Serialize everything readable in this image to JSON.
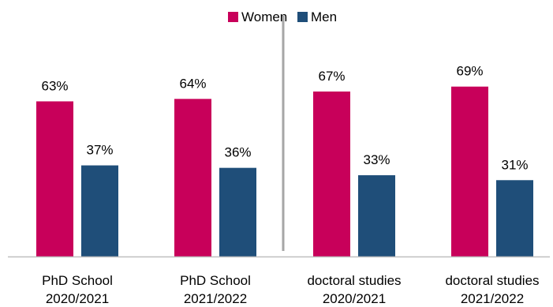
{
  "chart_data": {
    "type": "bar",
    "categories": [
      [
        "PhD School",
        "2020/2021"
      ],
      [
        "PhD School",
        "2021/2022"
      ],
      [
        "doctoral studies",
        "2020/2021"
      ],
      [
        "doctoral studies",
        "2021/2022"
      ]
    ],
    "series": [
      {
        "name": "Women",
        "color": "#C8005A",
        "values": [
          63,
          64,
          67,
          69
        ],
        "labels": [
          "63%",
          "64%",
          "67%",
          "69%"
        ]
      },
      {
        "name": "Men",
        "color": "#1F4E79",
        "values": [
          37,
          36,
          33,
          31
        ],
        "labels": [
          "37%",
          "36%",
          "33%",
          "31%"
        ]
      }
    ],
    "ylim": [
      0,
      80
    ],
    "legend": "top-center",
    "grid": false,
    "separator_color": "#A6A6A6",
    "axis_color": "#BFBFBF"
  }
}
